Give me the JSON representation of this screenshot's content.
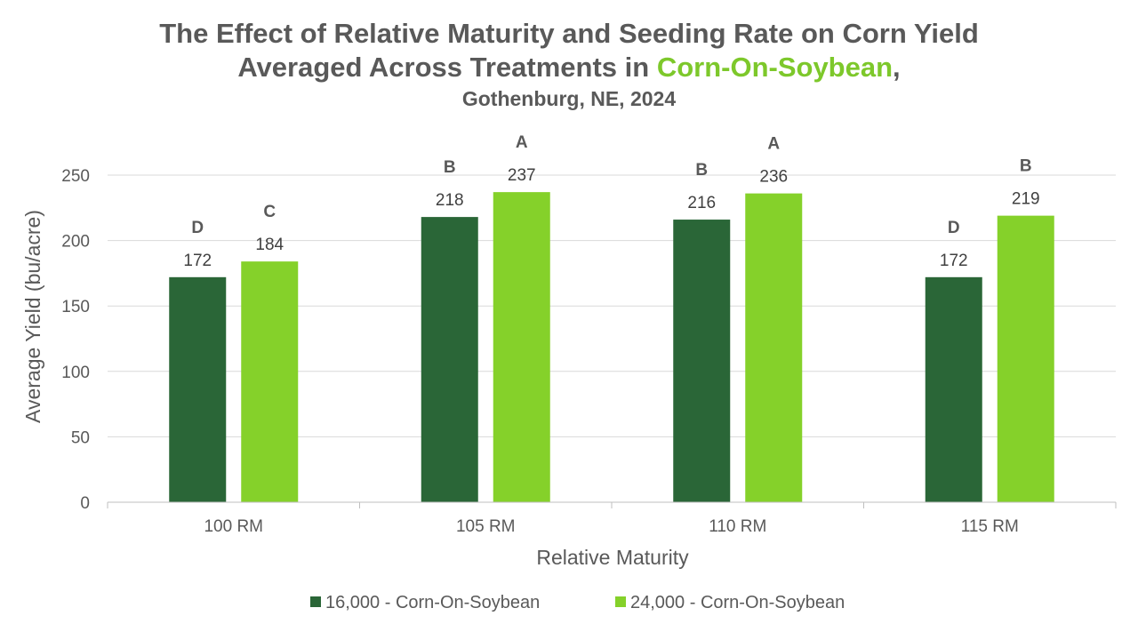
{
  "colors": {
    "series1": "#2a6637",
    "series2": "#85d12a",
    "highlight": "#7dc82b",
    "grid": "#d9d9d9",
    "text": "#595959"
  },
  "chart_data": {
    "type": "bar",
    "title_line1": "The Effect of Relative Maturity and Seeding Rate on Corn Yield",
    "title_line2_prefix": "Averaged Across Treatments in ",
    "title_line2_highlight": "Corn-On-Soybean",
    "title_line2_suffix": ",",
    "subtitle": "Gothenburg, NE, 2024",
    "xlabel": "Relative Maturity",
    "ylabel": "Average Yield (bu/acre)",
    "ylim": [
      0,
      250
    ],
    "yticks": [
      0,
      50,
      100,
      150,
      200,
      250
    ],
    "categories": [
      "100 RM",
      "105 RM",
      "110 RM",
      "115 RM"
    ],
    "series": [
      {
        "name": "16,000 - Corn-On-Soybean",
        "values": [
          172,
          218,
          216,
          172
        ],
        "letters": [
          "D",
          "B",
          "B",
          "D"
        ]
      },
      {
        "name": "24,000 - Corn-On-Soybean",
        "values": [
          184,
          237,
          236,
          219
        ],
        "letters": [
          "C",
          "A",
          "A",
          "B"
        ]
      }
    ],
    "legend_position": "bottom",
    "grid": true
  }
}
